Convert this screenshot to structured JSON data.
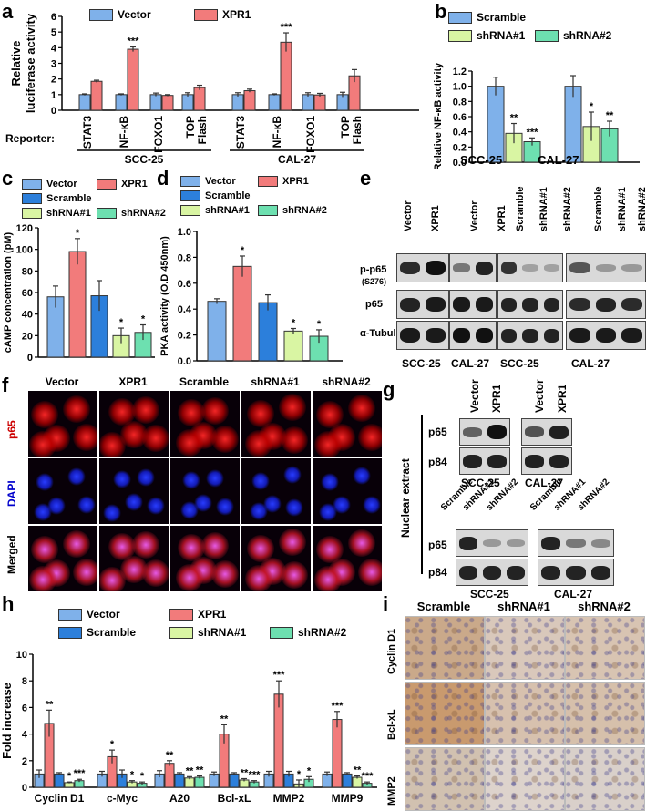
{
  "panels": {
    "a": {
      "label": "a",
      "legend": [
        "Vector",
        "XPR1"
      ],
      "reporter_label": "Reporter:",
      "groups": [
        "SCC-25",
        "CAL-27"
      ],
      "chart_data": {
        "type": "bar",
        "ylabel": "Relative luciferase activity",
        "ylim": [
          0,
          6
        ],
        "yticks": [
          "0",
          "1",
          "2",
          "3",
          "4",
          "5",
          "6"
        ],
        "categories": [
          "STAT3",
          "NF-κB",
          "FOXO1",
          "TOP Flash",
          "STAT3",
          "NF-κB",
          "FOXO1",
          "TOP Flash"
        ],
        "series": [
          {
            "name": "Vector",
            "color": "#7fb1ea",
            "values": [
              1.0,
              1.0,
              1.0,
              1.0,
              1.0,
              1.0,
              1.0,
              1.0
            ],
            "err": [
              0.05,
              0.05,
              0.1,
              0.12,
              0.12,
              0.05,
              0.12,
              0.15
            ]
          },
          {
            "name": "XPR1",
            "color": "#f27b7b",
            "values": [
              1.85,
              3.9,
              0.95,
              1.45,
              1.25,
              4.35,
              0.98,
              2.2
            ],
            "err": [
              0.07,
              0.15,
              0.05,
              0.15,
              0.1,
              0.6,
              0.1,
              0.4
            ]
          }
        ],
        "annotations": [
          "",
          "***",
          "",
          "",
          "",
          "***",
          "",
          ""
        ]
      }
    },
    "b": {
      "label": "b",
      "legend": [
        "Scramble",
        "shRNA#1",
        "shRNA#2"
      ],
      "chart_data": {
        "type": "bar",
        "ylabel": "Relative NF-κB activity",
        "ylim": [
          0,
          1.2
        ],
        "yticks": [
          "0.0",
          "0.2",
          "0.4",
          "0.6",
          "0.8",
          "1.0",
          "1.2"
        ],
        "categories": [
          "SCC-25",
          "CAL-27"
        ],
        "series": [
          {
            "name": "Scramble",
            "color": "#7fb1ea",
            "values": [
              1.0,
              1.0
            ],
            "err": [
              0.12,
              0.14
            ]
          },
          {
            "name": "shRNA#1",
            "color": "#d9f5a3",
            "values": [
              0.38,
              0.47
            ],
            "err": [
              0.13,
              0.19
            ]
          },
          {
            "name": "shRNA#2",
            "color": "#6de0b0",
            "values": [
              0.27,
              0.44
            ],
            "err": [
              0.05,
              0.1
            ]
          }
        ],
        "annotations": [
          [
            "",
            "**",
            "***"
          ],
          [
            "",
            "*",
            "**"
          ]
        ]
      }
    },
    "c": {
      "label": "c",
      "legend": [
        "Vector",
        "XPR1",
        "Scramble",
        "shRNA#1",
        "shRNA#2"
      ],
      "chart_data": {
        "type": "bar",
        "ylabel": "cAMP concentration (pM)",
        "ylim": [
          0,
          120
        ],
        "yticks": [
          "0",
          "20",
          "40",
          "60",
          "80",
          "100",
          "120"
        ],
        "categories": [
          "Vector",
          "XPR1",
          "Scramble",
          "shRNA#1",
          "shRNA#2"
        ],
        "colors": [
          "#7fb1ea",
          "#f27b7b",
          "#2c7fdb",
          "#d9f5a3",
          "#6de0b0"
        ],
        "values": [
          56,
          98,
          57,
          20,
          23
        ],
        "err": [
          10,
          12,
          14,
          7,
          7
        ],
        "annotations": [
          "",
          "*",
          "",
          "*",
          "*"
        ]
      }
    },
    "d": {
      "label": "d",
      "legend": [
        "Vector",
        "XPR1",
        "Scramble",
        "shRNA#1",
        "shRNA#2"
      ],
      "chart_data": {
        "type": "bar",
        "ylabel": "PKA activity (O.D 450nm)",
        "ylim": [
          0,
          1.0
        ],
        "yticks": [
          "0.0",
          "0.2",
          "0.4",
          "0.6",
          "0.8",
          "1.0"
        ],
        "categories": [
          "Vector",
          "XPR1",
          "Scramble",
          "shRNA#1",
          "shRNA#2"
        ],
        "colors": [
          "#7fb1ea",
          "#f27b7b",
          "#2c7fdb",
          "#d9f5a3",
          "#6de0b0"
        ],
        "values": [
          0.46,
          0.73,
          0.45,
          0.23,
          0.19
        ],
        "err": [
          0.02,
          0.08,
          0.06,
          0.02,
          0.05
        ],
        "annotations": [
          "",
          "*",
          "",
          "*",
          "*"
        ]
      }
    },
    "e": {
      "label": "e",
      "lanes": [
        "Vector",
        "XPR1",
        "Vector",
        "XPR1",
        "Scramble",
        "shRNA#1",
        "shRNA#2",
        "Scramble",
        "shRNA#1",
        "shRNA#2"
      ],
      "rows": [
        "p-p65",
        "p65",
        "α-Tubulin"
      ],
      "row_sub": "(S276)",
      "groups": [
        "SCC-25",
        "CAL-27",
        "SCC-25",
        "CAL-27"
      ]
    },
    "f": {
      "label": "f",
      "columns": [
        "Vector",
        "XPR1",
        "Scramble",
        "shRNA#1",
        "shRNA#2"
      ],
      "rows": [
        "p65",
        "DAPI",
        "Merged"
      ]
    },
    "g": {
      "label": "g",
      "side_label": "Nuclear extract",
      "top_lanes": [
        "Vector",
        "XPR1",
        "Vector",
        "XPR1"
      ],
      "top_groups": [
        "SCC-25",
        "CAL-27"
      ],
      "bottom_lanes": [
        "Scramble",
        "shRNA#1",
        "shRNA#2",
        "Scramble",
        "shRNA#1",
        "shRNA#2"
      ],
      "bottom_groups": [
        "SCC-25",
        "CAL-27"
      ],
      "rows": [
        "p65",
        "p84"
      ]
    },
    "h": {
      "label": "h",
      "legend": [
        "Vector",
        "XPR1",
        "Scramble",
        "shRNA#1",
        "shRNA#2"
      ],
      "chart_data": {
        "type": "bar",
        "ylabel": "Fold increase",
        "ylim": [
          0,
          10
        ],
        "yticks": [
          "0",
          "2",
          "4",
          "6",
          "8",
          "10"
        ],
        "categories": [
          "Cyclin D1",
          "c-Myc",
          "A20",
          "Bcl-xL",
          "MMP2",
          "MMP9"
        ],
        "series": [
          {
            "name": "Vector",
            "color": "#7fb1ea",
            "values": [
              1.0,
              1.0,
              1.0,
              1.0,
              1.0,
              1.0
            ],
            "err": [
              0.3,
              0.2,
              0.25,
              0.15,
              0.2,
              0.15
            ]
          },
          {
            "name": "XPR1",
            "color": "#f27b7b",
            "values": [
              4.8,
              2.3,
              1.8,
              4.0,
              7.0,
              5.1
            ],
            "err": [
              1.0,
              0.5,
              0.2,
              0.7,
              1.0,
              0.6
            ]
          },
          {
            "name": "Scramble",
            "color": "#2c7fdb",
            "values": [
              1.0,
              1.0,
              1.0,
              1.0,
              1.0,
              1.0
            ],
            "err": [
              0.1,
              0.3,
              0.1,
              0.1,
              0.2,
              0.1
            ]
          },
          {
            "name": "shRNA#1",
            "color": "#d9f5a3",
            "values": [
              0.35,
              0.4,
              0.7,
              0.55,
              0.25,
              0.75
            ],
            "err": [
              0.05,
              0.1,
              0.1,
              0.1,
              0.3,
              0.1
            ]
          },
          {
            "name": "shRNA#2",
            "color": "#6de0b0",
            "values": [
              0.5,
              0.3,
              0.75,
              0.4,
              0.6,
              0.3
            ],
            "err": [
              0.1,
              0.1,
              0.1,
              0.1,
              0.2,
              0.1
            ]
          }
        ],
        "annotations": [
          [
            "",
            "**",
            "",
            "*",
            "***"
          ],
          [
            "",
            "*",
            "",
            "*",
            "*"
          ],
          [
            "",
            "**",
            "",
            "**",
            "**"
          ],
          [
            "",
            "**",
            "",
            "**",
            "***"
          ],
          [
            "",
            "***",
            "",
            "*",
            "*"
          ],
          [
            "",
            "***",
            "",
            "**",
            "***"
          ]
        ]
      }
    },
    "i": {
      "label": "i",
      "columns": [
        "Scramble",
        "shRNA#1",
        "shRNA#2"
      ],
      "rows": [
        "Cyclin D1",
        "Bcl-xL",
        "MMP2"
      ]
    }
  },
  "colors": {
    "vector": "#7fb1ea",
    "xpr1": "#f27b7b",
    "scramble": "#2c7fdb",
    "shrna1": "#d9f5a3",
    "shrna2": "#6de0b0",
    "p65_text": "#cc0000",
    "dapi_text": "#0000cc"
  }
}
